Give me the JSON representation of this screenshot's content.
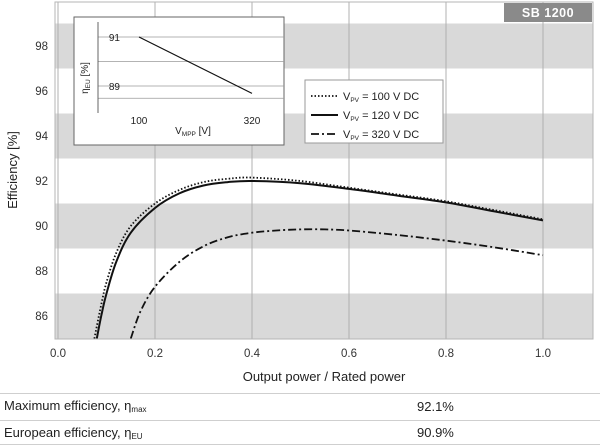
{
  "badge": "SB 1200",
  "chart_data": {
    "type": "line",
    "xlabel": "Output power / Rated power",
    "ylabel": "Efficiency [%]",
    "xlim": [
      0.0,
      1.1
    ],
    "ylim": [
      85,
      99
    ],
    "x_ticks": [
      "0.0",
      "0.2",
      "0.4",
      "0.6",
      "0.8",
      "1.0"
    ],
    "y_ticks": [
      "86",
      "88",
      "90",
      "92",
      "94",
      "96",
      "98"
    ],
    "grid": true,
    "legend_position": "top-right",
    "series": [
      {
        "name": "V_PV = 100 V DC",
        "legend_main": "V",
        "legend_sub": "PV",
        "legend_rest": " = 100 V DC",
        "style": "dotted",
        "x": [
          0.075,
          0.09,
          0.1,
          0.12,
          0.15,
          0.2,
          0.25,
          0.3,
          0.35,
          0.4,
          0.5,
          0.6,
          0.7,
          0.8,
          0.9,
          1.0
        ],
        "y": [
          85.0,
          86.6,
          87.5,
          88.8,
          90.0,
          91.0,
          91.6,
          91.95,
          92.1,
          92.15,
          92.0,
          91.7,
          91.4,
          91.1,
          90.7,
          90.3
        ]
      },
      {
        "name": "V_PV = 120 V DC",
        "legend_main": "V",
        "legend_sub": "PV",
        "legend_rest": " = 120 V DC",
        "style": "solid",
        "x": [
          0.08,
          0.09,
          0.1,
          0.12,
          0.15,
          0.2,
          0.25,
          0.3,
          0.35,
          0.4,
          0.5,
          0.6,
          0.7,
          0.8,
          0.9,
          1.0
        ],
        "y": [
          85.0,
          86.1,
          87.0,
          88.4,
          89.7,
          90.8,
          91.45,
          91.8,
          91.95,
          92.0,
          91.9,
          91.65,
          91.35,
          91.05,
          90.65,
          90.25
        ]
      },
      {
        "name": "V_PV = 320 V DC",
        "legend_main": "V",
        "legend_sub": "PV",
        "legend_rest": " = 320 V DC",
        "style": "dashdot",
        "x": [
          0.15,
          0.17,
          0.2,
          0.25,
          0.3,
          0.35,
          0.4,
          0.45,
          0.5,
          0.55,
          0.6,
          0.7,
          0.8,
          0.9,
          1.0
        ],
        "y": [
          85.0,
          86.2,
          87.3,
          88.4,
          89.1,
          89.5,
          89.7,
          89.8,
          89.85,
          89.85,
          89.8,
          89.6,
          89.35,
          89.05,
          88.7
        ]
      }
    ],
    "inset": {
      "xlabel_main": "V",
      "xlabel_sub": "MPP",
      "xlabel_rest": " [V]",
      "ylabel_main": "η",
      "ylabel_sub": "EU",
      "ylabel_rest": " [%]",
      "x_ticks": [
        "100",
        "320"
      ],
      "y_ticks": [
        "91",
        "89"
      ],
      "xlim": [
        100,
        320
      ],
      "ylim": [
        88.5,
        91.0
      ],
      "x": [
        100,
        320
      ],
      "y": [
        91.0,
        88.7
      ]
    }
  },
  "summary": {
    "max": {
      "label": "Maximum efficiency, η",
      "label_sub": "max",
      "value": "92.1%"
    },
    "eu": {
      "label": "European efficiency, η",
      "label_sub": "EU",
      "value": "90.9%"
    }
  }
}
